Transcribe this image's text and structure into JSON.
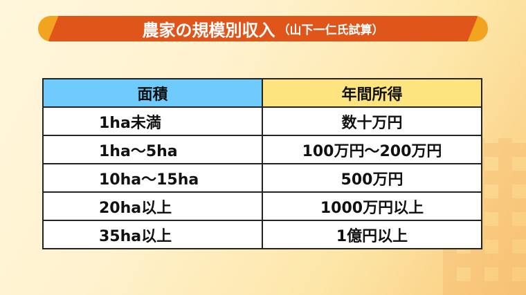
{
  "title": {
    "main": "農家の規模別収入",
    "sub": "（山下一仁氏試算）"
  },
  "colors": {
    "title_bg": "#e0561a",
    "title_edge": "#f2a31f",
    "header_area": "#6fcbfb",
    "header_income": "#fde47e"
  },
  "table": {
    "headers": [
      "面積",
      "年間所得"
    ],
    "rows": [
      [
        "1ha未満",
        "数十万円"
      ],
      [
        "1ha～5ha",
        "100万円～200万円"
      ],
      [
        "10ha～15ha",
        "500万円"
      ],
      [
        "20ha以上",
        "1000万円以上"
      ],
      [
        "35ha以上",
        "1億円以上"
      ]
    ]
  }
}
